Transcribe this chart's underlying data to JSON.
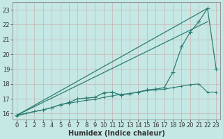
{
  "background_color": "#c5e8e4",
  "grid_color": "#b0d5d0",
  "line_color": "#2e7d72",
  "xlabel": "Humidex (Indice chaleur)",
  "xlabel_fontsize": 7,
  "tick_fontsize": 6,
  "xlim": [
    -0.5,
    23.5
  ],
  "ylim": [
    15.6,
    23.5
  ],
  "yticks": [
    16,
    17,
    18,
    19,
    20,
    21,
    22,
    23
  ],
  "xticks": [
    0,
    1,
    2,
    3,
    4,
    5,
    6,
    7,
    8,
    9,
    10,
    11,
    12,
    13,
    14,
    15,
    16,
    17,
    18,
    19,
    20,
    21,
    22,
    23
  ],
  "line1_x": [
    0,
    22
  ],
  "line1_y": [
    15.9,
    23.1
  ],
  "line2_x": [
    0,
    22
  ],
  "line2_y": [
    15.9,
    22.2
  ],
  "series_marked_x": [
    0,
    1,
    2,
    3,
    4,
    5,
    6,
    7,
    8,
    9,
    10,
    11,
    12,
    13,
    14,
    15,
    16,
    17,
    18,
    19,
    20,
    21,
    22,
    23
  ],
  "series_marked_y": [
    15.85,
    16.0,
    16.15,
    16.25,
    16.4,
    16.6,
    16.7,
    16.8,
    16.9,
    16.95,
    17.1,
    17.2,
    17.3,
    17.35,
    17.45,
    17.55,
    17.6,
    17.65,
    17.75,
    17.85,
    17.95,
    18.0,
    17.45,
    17.45
  ],
  "series_spike_x": [
    0,
    3,
    4,
    5,
    6,
    7,
    8,
    9,
    10,
    11,
    12,
    13,
    14,
    15,
    16,
    17,
    18,
    19,
    20,
    21,
    22,
    23
  ],
  "series_spike_y": [
    15.9,
    16.25,
    16.4,
    16.6,
    16.75,
    17.0,
    17.05,
    17.1,
    17.4,
    17.45,
    17.25,
    17.35,
    17.45,
    17.6,
    17.65,
    17.75,
    18.8,
    20.5,
    21.5,
    22.2,
    23.1,
    19.0
  ]
}
